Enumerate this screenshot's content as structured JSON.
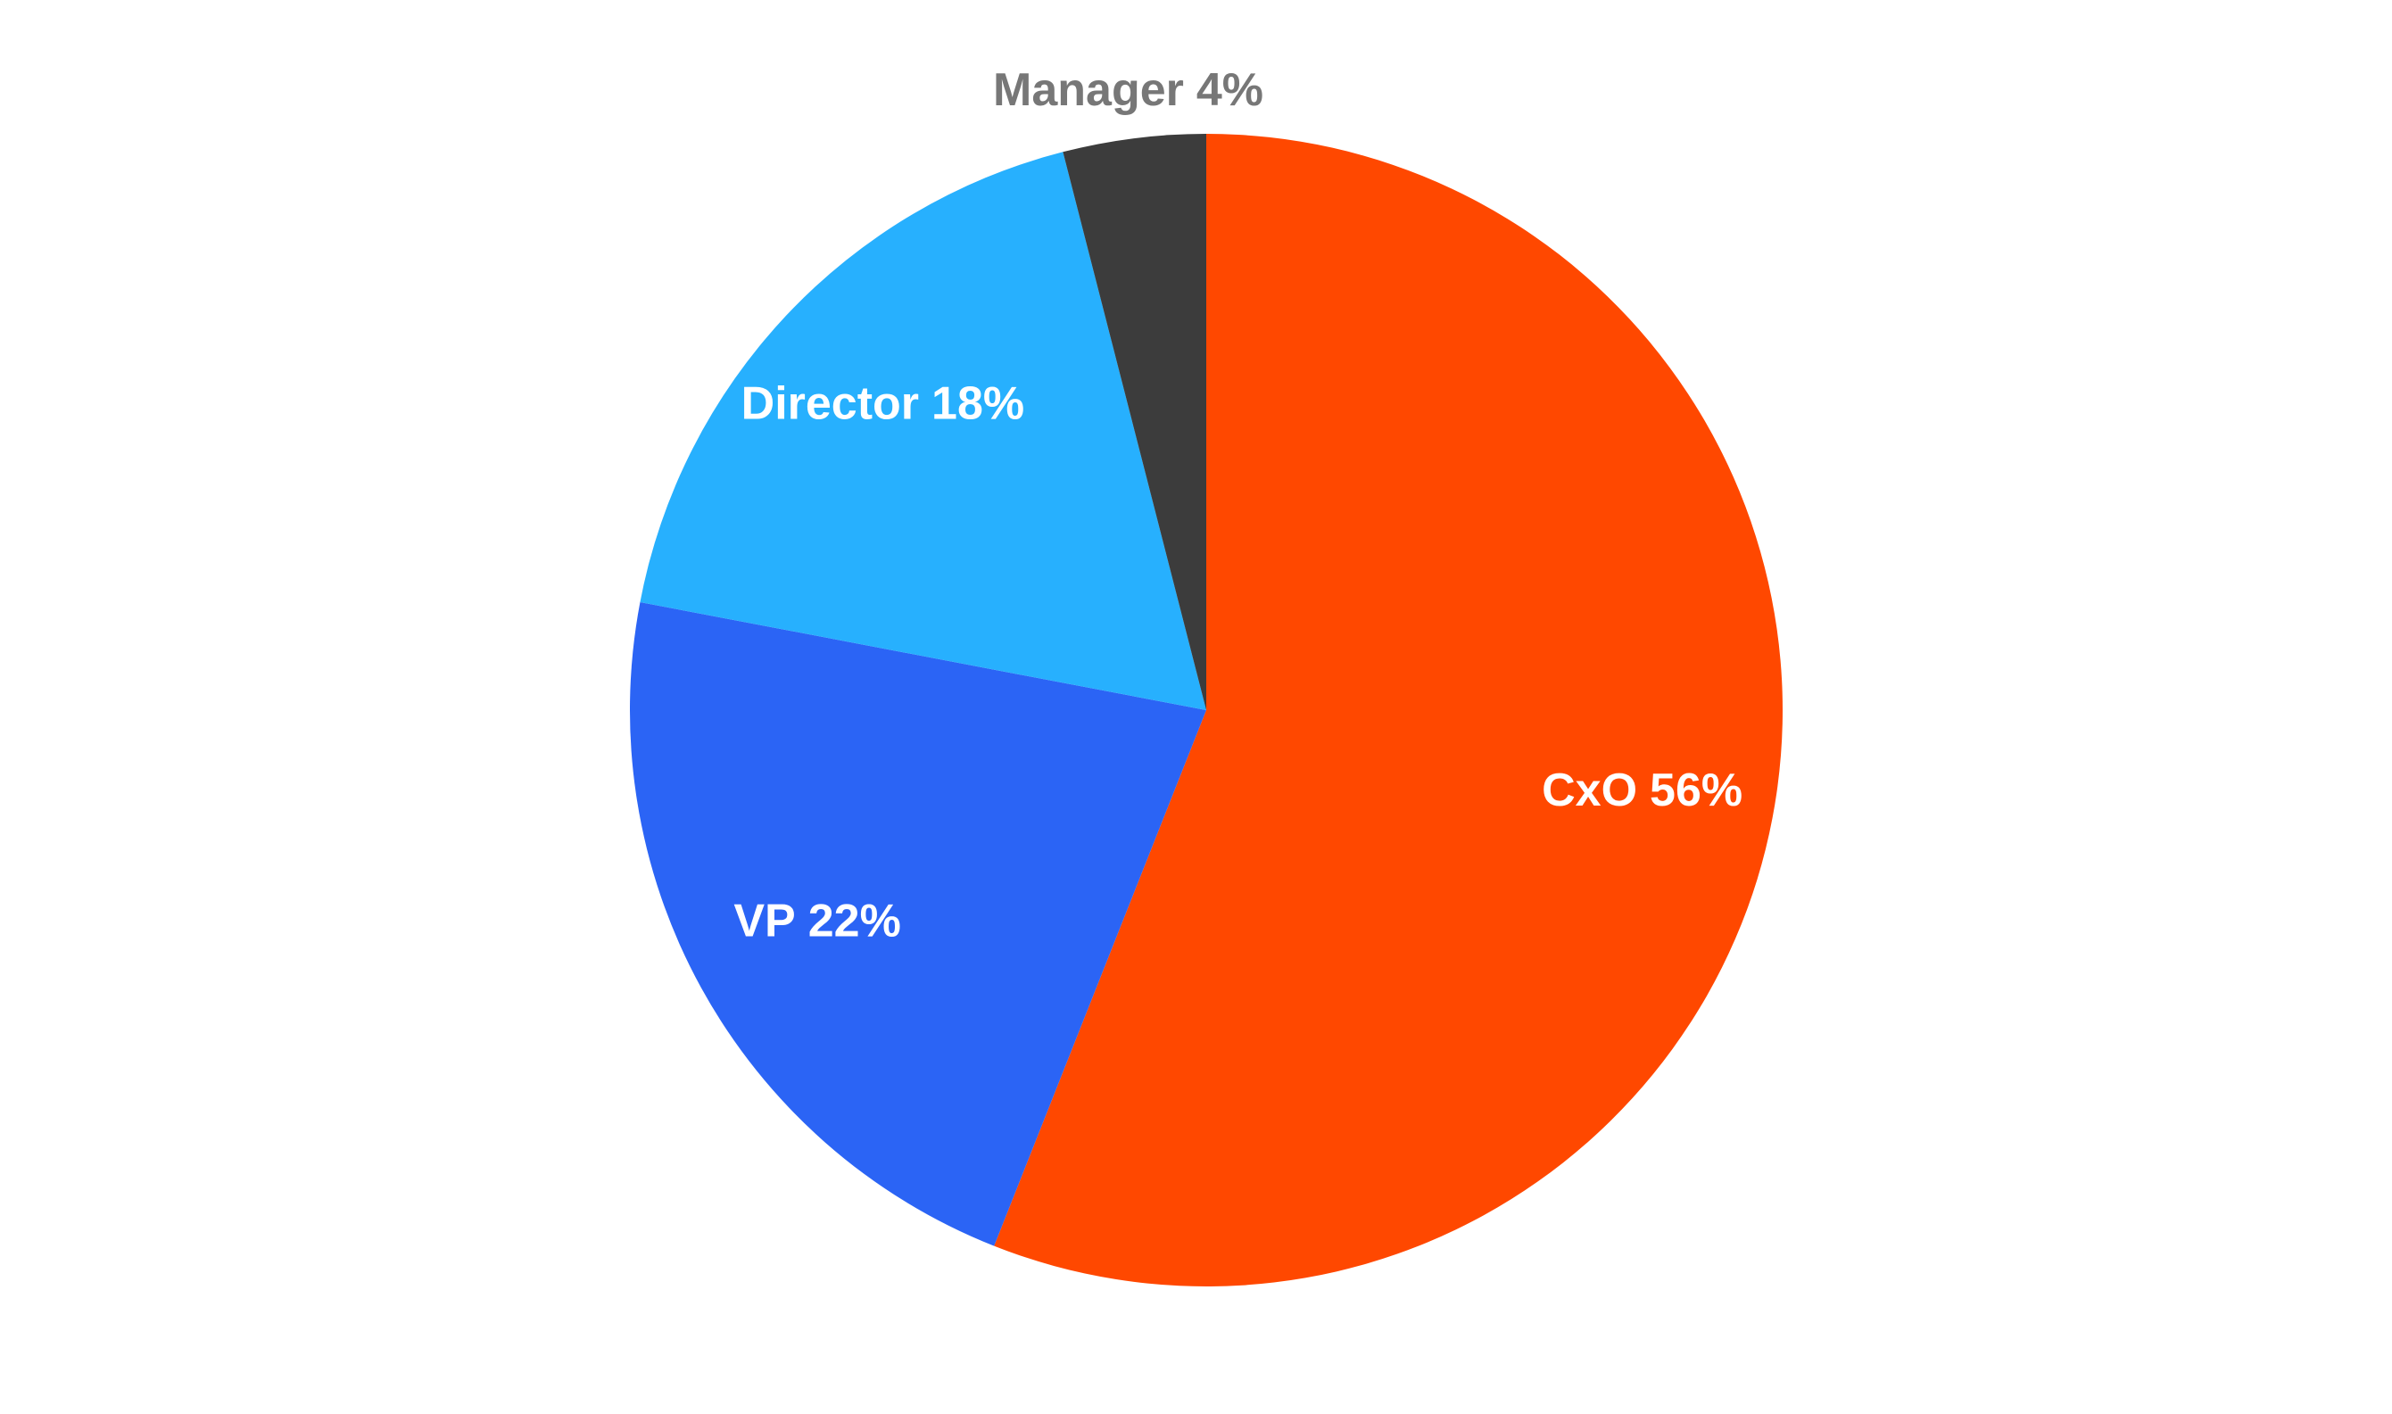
{
  "chart_data": {
    "type": "pie",
    "categories": [
      "CxO",
      "VP",
      "Director",
      "Manager"
    ],
    "values": [
      56,
      22,
      18,
      4
    ],
    "value_labels": [
      "56%",
      "22%",
      "18%",
      "4%"
    ],
    "colors": [
      "#ff4800",
      "#2b64f5",
      "#27b0fe",
      "#3c3c3c"
    ],
    "start_angle": "top",
    "direction": "clockwise"
  }
}
